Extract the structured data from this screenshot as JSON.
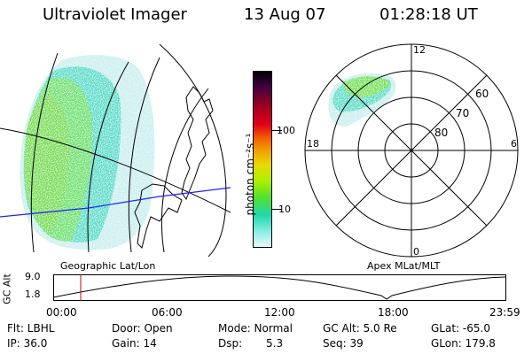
{
  "header": {
    "title": "Ultraviolet Imager",
    "date": "13 Aug 07",
    "time": "01:28:18 UT"
  },
  "colorbar": {
    "unit": "photon cm⁻²s⁻¹",
    "ticks": [
      "100",
      "10"
    ],
    "colors": [
      "#000000",
      "#3b0040",
      "#a00020",
      "#e0001a",
      "#f06000",
      "#f4a000",
      "#e8d800",
      "#b0f000",
      "#50e030",
      "#20d8b0",
      "#90f0e8",
      "#e8f8f8"
    ]
  },
  "polar_plot": {
    "hour_labels": {
      "top": "12",
      "left": "18",
      "right": "6",
      "bottom": "0"
    },
    "lat_labels": [
      "60",
      "70",
      "80"
    ]
  },
  "map_labels": {
    "left": "Geographic Lat/Lon",
    "right": "Apex MLat/MLT"
  },
  "altitude_plot": {
    "ylabel": "GC Alt",
    "yticks": [
      "9.0",
      "1.8"
    ],
    "xticks": [
      "00:00",
      "06:00",
      "12:00",
      "18:00",
      "23:59"
    ],
    "marker_time": "01:28:18"
  },
  "footer": {
    "filter": "Flt: LBHL",
    "ip": "IP: 36.0",
    "door": "Door: Open",
    "gain": "Gain: 14",
    "mode": "Mode: Normal",
    "dsp_label": "Dsp:",
    "dsp_value": "5.3",
    "gc_alt": "GC Alt: 5.0 Re",
    "seq": "Seq: 39",
    "glat": "GLat: -65.0",
    "glon": "GLon: 179.8"
  }
}
